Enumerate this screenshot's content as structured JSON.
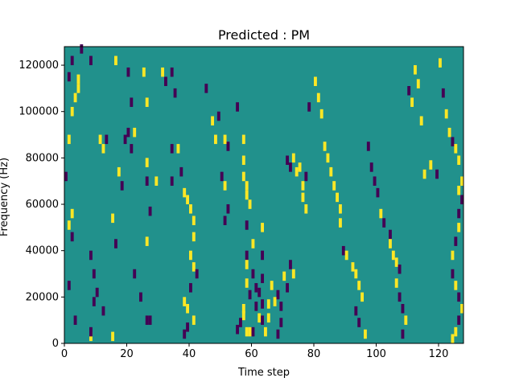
{
  "chart_data": {
    "type": "heatmap",
    "title": "Predicted : PM",
    "xlabel": "Time step",
    "ylabel": "Frequency (Hz)",
    "xlim": [
      0,
      128
    ],
    "ylim": [
      0,
      128000
    ],
    "x_ticks": [
      0,
      20,
      40,
      60,
      80,
      100,
      120
    ],
    "x_tick_labels": [
      "0",
      "20",
      "40",
      "60",
      "80",
      "100",
      "120"
    ],
    "y_ticks": [
      0,
      20000,
      40000,
      60000,
      80000,
      100000,
      120000
    ],
    "y_tick_labels": [
      "0",
      "20000",
      "40000",
      "60000",
      "80000",
      "100000",
      "120000"
    ],
    "grid": false,
    "colormap": "viridis",
    "background_value": 0,
    "colors": {
      "high": "#fde725",
      "background": "#21918c",
      "low": "#440154"
    },
    "cell_size": {
      "time_steps": 1,
      "hz": 4000
    },
    "note_values": {
      "high": 1,
      "low": -1
    },
    "cells": [
      [
        1,
        5,
        127000,
        -1
      ],
      [
        2,
        1,
        115000,
        -1
      ],
      [
        3,
        2,
        122000,
        -1
      ],
      [
        4,
        4,
        114000,
        1
      ],
      [
        5,
        4,
        110000,
        1
      ],
      [
        6,
        3,
        106000,
        1
      ],
      [
        7,
        2,
        100000,
        1
      ],
      [
        8,
        1,
        88000,
        1
      ],
      [
        9,
        0,
        72000,
        -1
      ],
      [
        10,
        2,
        56000,
        1
      ],
      [
        11,
        1,
        51000,
        1
      ],
      [
        12,
        2,
        46000,
        -1
      ],
      [
        13,
        1,
        25000,
        -1
      ],
      [
        14,
        3,
        10000,
        -1
      ],
      [
        15,
        8,
        122000,
        -1
      ],
      [
        16,
        8,
        38000,
        -1
      ],
      [
        17,
        9,
        30000,
        -1
      ],
      [
        18,
        11,
        88000,
        1
      ],
      [
        19,
        12,
        84000,
        1
      ],
      [
        20,
        13,
        88000,
        -1
      ],
      [
        21,
        16,
        122000,
        1
      ],
      [
        22,
        17,
        74000,
        1
      ],
      [
        23,
        18,
        68000,
        -1
      ],
      [
        24,
        10,
        22000,
        -1
      ],
      [
        25,
        12,
        14000,
        -1
      ],
      [
        26,
        9,
        18000,
        -1
      ],
      [
        27,
        8,
        3000,
        1
      ],
      [
        28,
        8,
        5000,
        -1
      ],
      [
        29,
        15,
        54000,
        1
      ],
      [
        30,
        16,
        43000,
        -1
      ],
      [
        31,
        15,
        3000,
        1
      ],
      [
        32,
        20,
        117000,
        -1
      ],
      [
        33,
        20,
        91000,
        -1
      ],
      [
        34,
        19,
        88000,
        -1
      ],
      [
        35,
        21,
        84000,
        -1
      ],
      [
        36,
        22,
        91000,
        1
      ],
      [
        37,
        21,
        104000,
        -1
      ],
      [
        38,
        25,
        117000,
        1
      ],
      [
        39,
        26,
        104000,
        1
      ],
      [
        40,
        26,
        78000,
        1
      ],
      [
        41,
        26,
        70000,
        -1
      ],
      [
        42,
        27,
        57000,
        -1
      ],
      [
        43,
        26,
        44000,
        1
      ],
      [
        44,
        22,
        30000,
        -1
      ],
      [
        45,
        24,
        20000,
        -1
      ],
      [
        46,
        26,
        10000,
        -1
      ],
      [
        47,
        27,
        10000,
        -1
      ],
      [
        48,
        29,
        70000,
        1
      ],
      [
        49,
        31,
        117000,
        1
      ],
      [
        50,
        32,
        113000,
        -1
      ],
      [
        51,
        34,
        117000,
        -1
      ],
      [
        52,
        35,
        108000,
        -1
      ],
      [
        53,
        34,
        84000,
        -1
      ],
      [
        54,
        36,
        84000,
        1
      ],
      [
        55,
        34,
        70000,
        -1
      ],
      [
        56,
        37,
        74000,
        -1
      ],
      [
        57,
        38,
        65000,
        1
      ],
      [
        58,
        39,
        62000,
        1
      ],
      [
        59,
        40,
        58000,
        1
      ],
      [
        60,
        41,
        53000,
        1
      ],
      [
        61,
        41,
        46000,
        1
      ],
      [
        62,
        40,
        38000,
        1
      ],
      [
        63,
        41,
        33000,
        1
      ],
      [
        64,
        42,
        30000,
        -1
      ],
      [
        65,
        40,
        24000,
        -1
      ],
      [
        66,
        38,
        18000,
        1
      ],
      [
        67,
        39,
        15000,
        1
      ],
      [
        68,
        41,
        10000,
        1
      ],
      [
        69,
        39,
        7000,
        -1
      ],
      [
        70,
        38,
        4000,
        -1
      ],
      [
        71,
        45,
        110000,
        -1
      ],
      [
        72,
        47,
        96000,
        1
      ],
      [
        73,
        49,
        98000,
        -1
      ],
      [
        74,
        48,
        88000,
        1
      ],
      [
        75,
        51,
        88000,
        1
      ],
      [
        76,
        52,
        85000,
        -1
      ],
      [
        77,
        50,
        72000,
        -1
      ],
      [
        78,
        51,
        68000,
        1
      ],
      [
        79,
        52,
        58000,
        -1
      ],
      [
        80,
        51,
        53000,
        -1
      ],
      [
        81,
        55,
        102000,
        -1
      ],
      [
        82,
        57,
        88000,
        1
      ],
      [
        83,
        57,
        79000,
        1
      ],
      [
        84,
        57,
        72000,
        1
      ],
      [
        85,
        58,
        68000,
        1
      ],
      [
        86,
        58,
        64000,
        1
      ],
      [
        87,
        59,
        60000,
        1
      ],
      [
        88,
        58,
        51000,
        -1
      ],
      [
        89,
        60,
        43000,
        1
      ],
      [
        90,
        58,
        38000,
        -1
      ],
      [
        91,
        58,
        34000,
        1
      ],
      [
        92,
        60,
        30000,
        -1
      ],
      [
        93,
        58,
        26000,
        1
      ],
      [
        94,
        59,
        21000,
        -1
      ],
      [
        95,
        57,
        15000,
        1
      ],
      [
        96,
        57,
        12000,
        1
      ],
      [
        97,
        56,
        9000,
        -1
      ],
      [
        98,
        55,
        6000,
        -1
      ],
      [
        99,
        58,
        5000,
        1
      ],
      [
        100,
        59,
        5000,
        1
      ],
      [
        101,
        61,
        24000,
        -1
      ],
      [
        102,
        63,
        17000,
        -1
      ],
      [
        103,
        62,
        11000,
        1
      ],
      [
        104,
        60,
        5000,
        -1
      ],
      [
        105,
        63,
        50000,
        1
      ],
      [
        106,
        63,
        38000,
        -1
      ],
      [
        107,
        63,
        28000,
        -1
      ],
      [
        108,
        62,
        22000,
        -1
      ],
      [
        109,
        61,
        16000,
        -1
      ],
      [
        110,
        63,
        10000,
        -1
      ],
      [
        111,
        64,
        5000,
        1
      ],
      [
        112,
        65,
        17000,
        1
      ],
      [
        113,
        65,
        11000,
        1
      ],
      [
        114,
        66,
        25000,
        1
      ],
      [
        115,
        67,
        18000,
        1
      ],
      [
        116,
        68,
        21000,
        -1
      ],
      [
        117,
        69,
        16000,
        -1
      ],
      [
        118,
        69,
        9000,
        -1
      ],
      [
        119,
        68,
        4000,
        -1
      ],
      [
        120,
        70,
        29000,
        1
      ],
      [
        121,
        71,
        24000,
        -1
      ],
      [
        122,
        72,
        34000,
        -1
      ],
      [
        123,
        73,
        30000,
        1
      ],
      [
        124,
        71,
        79000,
        -1
      ],
      [
        125,
        72,
        76000,
        -1
      ],
      [
        126,
        73,
        80000,
        1
      ],
      [
        127,
        74,
        74000,
        1
      ],
      [
        128,
        75,
        76000,
        1
      ],
      [
        129,
        76,
        68000,
        1
      ],
      [
        130,
        76,
        63000,
        1
      ],
      [
        131,
        77,
        58000,
        1
      ],
      [
        132,
        77,
        72000,
        -1
      ],
      [
        133,
        78,
        102000,
        -1
      ],
      [
        134,
        80,
        113000,
        1
      ],
      [
        135,
        81,
        106000,
        1
      ],
      [
        136,
        82,
        99000,
        1
      ],
      [
        137,
        83,
        85000,
        1
      ],
      [
        138,
        84,
        80000,
        1
      ],
      [
        139,
        85,
        74000,
        1
      ],
      [
        140,
        86,
        68000,
        1
      ],
      [
        141,
        87,
        63000,
        1
      ],
      [
        142,
        88,
        58000,
        1
      ],
      [
        143,
        88,
        52000,
        1
      ],
      [
        144,
        89,
        40000,
        -1
      ],
      [
        145,
        90,
        38000,
        1
      ],
      [
        146,
        92,
        33000,
        1
      ],
      [
        147,
        93,
        30000,
        1
      ],
      [
        148,
        94,
        25000,
        1
      ],
      [
        149,
        95,
        20000,
        1
      ],
      [
        150,
        93,
        14000,
        -1
      ],
      [
        151,
        94,
        9000,
        -1
      ],
      [
        152,
        96,
        4000,
        1
      ],
      [
        153,
        97,
        85000,
        -1
      ],
      [
        154,
        98,
        76000,
        -1
      ],
      [
        155,
        99,
        70000,
        -1
      ],
      [
        156,
        100,
        65000,
        -1
      ],
      [
        157,
        101,
        56000,
        1
      ],
      [
        158,
        102,
        52000,
        -1
      ],
      [
        159,
        104,
        47000,
        -1
      ],
      [
        160,
        104,
        43000,
        1
      ],
      [
        161,
        105,
        38000,
        1
      ],
      [
        162,
        106,
        35000,
        1
      ],
      [
        163,
        107,
        32000,
        -1
      ],
      [
        164,
        106,
        26000,
        1
      ],
      [
        165,
        107,
        20000,
        -1
      ],
      [
        166,
        108,
        15000,
        -1
      ],
      [
        167,
        109,
        10000,
        1
      ],
      [
        168,
        108,
        4000,
        -1
      ],
      [
        169,
        110,
        109000,
        -1
      ],
      [
        170,
        111,
        104000,
        1
      ],
      [
        171,
        112,
        118000,
        1
      ],
      [
        172,
        113,
        112000,
        1
      ],
      [
        173,
        114,
        96000,
        1
      ],
      [
        174,
        115,
        73000,
        1
      ],
      [
        175,
        117,
        77000,
        1
      ],
      [
        176,
        119,
        73000,
        -1
      ],
      [
        177,
        120,
        121000,
        1
      ],
      [
        178,
        121,
        108000,
        -1
      ],
      [
        179,
        122,
        99000,
        1
      ],
      [
        180,
        123,
        91000,
        1
      ],
      [
        181,
        124,
        87000,
        -1
      ],
      [
        182,
        125,
        84000,
        1
      ],
      [
        183,
        126,
        79000,
        1
      ],
      [
        184,
        127,
        70000,
        1
      ],
      [
        185,
        126,
        66000,
        1
      ],
      [
        186,
        127,
        62000,
        -1
      ],
      [
        187,
        126,
        56000,
        -1
      ],
      [
        188,
        126,
        50000,
        1
      ],
      [
        189,
        125,
        44000,
        -1
      ],
      [
        190,
        124,
        38000,
        1
      ],
      [
        191,
        124,
        30000,
        -1
      ],
      [
        192,
        125,
        25000,
        1
      ],
      [
        193,
        126,
        20000,
        -1
      ],
      [
        194,
        127,
        15000,
        1
      ],
      [
        195,
        126,
        10000,
        -1
      ],
      [
        196,
        125,
        5000,
        1
      ],
      [
        197,
        124,
        2000,
        1
      ]
    ]
  }
}
